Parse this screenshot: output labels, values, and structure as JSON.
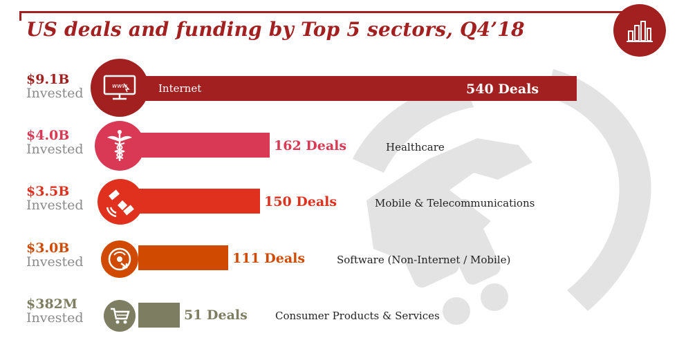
{
  "title": "US deals and funding by Top 5 sectors, Q4’18",
  "colors": {
    "accent": "#a32020",
    "internet": "#a32020",
    "healthcare": "#d93954",
    "mobile": "#e0301e",
    "software": "#d04a02",
    "consumer": "#7d7d62"
  },
  "chart_data": {
    "type": "bar",
    "orientation": "horizontal",
    "title": "US deals and funding by Top 5 sectors, Q4’18",
    "value_unit": "Deals",
    "categories": [
      "Internet",
      "Healthcare",
      "Mobile & Telecommunications",
      "Software (Non-Internet / Mobile)",
      "Consumer Products & Services"
    ],
    "values": [
      540,
      162,
      150,
      111,
      51
    ],
    "invested": [
      "$9.1B",
      "$4.0B",
      "$3.5B",
      "$3.0B",
      "$382M"
    ],
    "invested_label": "Invested",
    "deal_labels": [
      "540 Deals",
      "162 Deals",
      "150 Deals",
      "111 Deals",
      "51 Deals"
    ],
    "icons": [
      "www-monitor-icon",
      "caduceus-icon",
      "satellite-icon",
      "software-disc-icon",
      "shopping-cart-icon"
    ]
  }
}
